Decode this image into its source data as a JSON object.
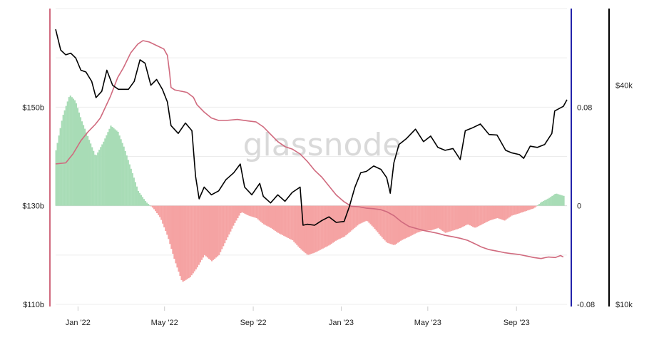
{
  "chart_data": {
    "type": "line",
    "title": "",
    "watermark": "glassnode",
    "x_range": [
      "2021-12-01",
      "2023-11-10"
    ],
    "x_ticks": [
      "Jan '22",
      "May '22",
      "Sep '22",
      "Jan '23",
      "May '23",
      "Sep '23"
    ],
    "x_tick_dates": [
      "2022-01-01",
      "2022-05-01",
      "2022-09-01",
      "2023-01-01",
      "2023-05-01",
      "2023-09-01"
    ],
    "axes": {
      "left": {
        "ticks": [
          "$110b",
          "$130b",
          "$150b"
        ],
        "values": [
          110,
          130,
          150
        ],
        "range": [
          110,
          170
        ],
        "unit": "billion USD",
        "color": "#d06a7e"
      },
      "right_inner": {
        "ticks": [
          "-0.08",
          "0",
          "0.08"
        ],
        "values": [
          -0.08,
          0,
          0.08
        ],
        "range": [
          -0.08,
          0.16
        ],
        "color": "#2222aa"
      },
      "right_outer": {
        "ticks": [
          "$10k",
          "$40k"
        ],
        "values": [
          10,
          40
        ],
        "range": [
          10,
          65
        ],
        "unit": "thousand USD",
        "log_scale": true,
        "color": "#000000"
      }
    },
    "grid": true,
    "series": [
      {
        "axis": "left",
        "style": "line",
        "color": "#d06a7e",
        "points": [
          [
            "2021-12-01",
            138.5
          ],
          [
            "2021-12-15",
            138.7
          ],
          [
            "2021-12-25",
            140.5
          ],
          [
            "2022-01-05",
            143.2
          ],
          [
            "2022-01-15",
            145.0
          ],
          [
            "2022-01-25",
            146.5
          ],
          [
            "2022-02-01",
            147.8
          ],
          [
            "2022-02-15",
            152.2
          ],
          [
            "2022-02-25",
            156.0
          ],
          [
            "2022-03-05",
            158.0
          ],
          [
            "2022-03-15",
            161.0
          ],
          [
            "2022-03-25",
            162.8
          ],
          [
            "2022-04-01",
            163.5
          ],
          [
            "2022-04-10",
            163.2
          ],
          [
            "2022-04-20",
            162.5
          ],
          [
            "2022-04-30",
            161.8
          ],
          [
            "2022-05-05",
            160.5
          ],
          [
            "2022-05-08",
            157.0
          ],
          [
            "2022-05-10",
            154.0
          ],
          [
            "2022-05-15",
            153.5
          ],
          [
            "2022-06-01",
            153.0
          ],
          [
            "2022-06-10",
            152.0
          ],
          [
            "2022-06-15",
            150.5
          ],
          [
            "2022-06-25",
            149.0
          ],
          [
            "2022-07-05",
            147.8
          ],
          [
            "2022-07-15",
            147.3
          ],
          [
            "2022-07-25",
            147.3
          ],
          [
            "2022-08-10",
            147.5
          ],
          [
            "2022-08-25",
            147.2
          ],
          [
            "2022-09-05",
            147.0
          ],
          [
            "2022-09-15",
            146.0
          ],
          [
            "2022-09-25",
            144.5
          ],
          [
            "2022-10-05",
            143.0
          ],
          [
            "2022-10-15",
            142.0
          ],
          [
            "2022-10-25",
            141.5
          ],
          [
            "2022-11-05",
            140.5
          ],
          [
            "2022-11-15",
            139.0
          ],
          [
            "2022-11-25",
            137.2
          ],
          [
            "2022-12-05",
            135.8
          ],
          [
            "2022-12-15",
            134.0
          ],
          [
            "2022-12-25",
            132.2
          ],
          [
            "2023-01-05",
            130.8
          ],
          [
            "2023-01-15",
            129.9
          ],
          [
            "2023-01-25",
            129.8
          ],
          [
            "2023-02-05",
            129.5
          ],
          [
            "2023-02-15",
            129.4
          ],
          [
            "2023-02-25",
            129.2
          ],
          [
            "2023-03-05",
            128.8
          ],
          [
            "2023-03-15",
            128.0
          ],
          [
            "2023-03-25",
            126.8
          ],
          [
            "2023-04-05",
            125.8
          ],
          [
            "2023-04-15",
            125.4
          ],
          [
            "2023-04-25",
            125.0
          ],
          [
            "2023-05-05",
            124.7
          ],
          [
            "2023-05-15",
            124.4
          ],
          [
            "2023-05-25",
            124.0
          ],
          [
            "2023-06-05",
            123.7
          ],
          [
            "2023-06-15",
            123.4
          ],
          [
            "2023-06-25",
            123.0
          ],
          [
            "2023-07-05",
            122.3
          ],
          [
            "2023-07-15",
            121.6
          ],
          [
            "2023-07-25",
            121.1
          ],
          [
            "2023-08-05",
            120.8
          ],
          [
            "2023-08-15",
            120.5
          ],
          [
            "2023-08-25",
            120.3
          ],
          [
            "2023-09-05",
            120.1
          ],
          [
            "2023-09-15",
            119.8
          ],
          [
            "2023-09-25",
            119.5
          ],
          [
            "2023-10-05",
            119.3
          ],
          [
            "2023-10-15",
            119.6
          ],
          [
            "2023-10-25",
            119.5
          ],
          [
            "2023-11-01",
            119.9
          ],
          [
            "2023-11-05",
            119.6
          ]
        ]
      },
      {
        "axis": "right_inner",
        "style": "histogram",
        "positive_color": "#a8dcb6",
        "negative_color": "#f5a3a3",
        "points": [
          [
            "2021-12-01",
            0.045
          ],
          [
            "2021-12-10",
            0.072
          ],
          [
            "2021-12-20",
            0.09
          ],
          [
            "2021-12-28",
            0.085
          ],
          [
            "2022-01-05",
            0.07
          ],
          [
            "2022-01-15",
            0.055
          ],
          [
            "2022-01-25",
            0.04
          ],
          [
            "2022-02-05",
            0.052
          ],
          [
            "2022-02-15",
            0.065
          ],
          [
            "2022-02-25",
            0.06
          ],
          [
            "2022-03-05",
            0.048
          ],
          [
            "2022-03-15",
            0.03
          ],
          [
            "2022-03-25",
            0.012
          ],
          [
            "2022-04-05",
            0.003
          ],
          [
            "2022-04-15",
            -0.002
          ],
          [
            "2022-04-25",
            -0.01
          ],
          [
            "2022-05-05",
            -0.025
          ],
          [
            "2022-05-15",
            -0.045
          ],
          [
            "2022-05-25",
            -0.062
          ],
          [
            "2022-06-05",
            -0.058
          ],
          [
            "2022-06-15",
            -0.05
          ],
          [
            "2022-06-25",
            -0.04
          ],
          [
            "2022-07-05",
            -0.045
          ],
          [
            "2022-07-15",
            -0.04
          ],
          [
            "2022-07-25",
            -0.028
          ],
          [
            "2022-08-05",
            -0.015
          ],
          [
            "2022-08-15",
            -0.005
          ],
          [
            "2022-08-25",
            -0.008
          ],
          [
            "2022-09-05",
            -0.01
          ],
          [
            "2022-09-15",
            -0.015
          ],
          [
            "2022-09-25",
            -0.018
          ],
          [
            "2022-10-05",
            -0.022
          ],
          [
            "2022-10-15",
            -0.025
          ],
          [
            "2022-10-25",
            -0.028
          ],
          [
            "2022-11-05",
            -0.035
          ],
          [
            "2022-11-15",
            -0.04
          ],
          [
            "2022-11-25",
            -0.038
          ],
          [
            "2022-12-05",
            -0.035
          ],
          [
            "2022-12-15",
            -0.032
          ],
          [
            "2022-12-25",
            -0.028
          ],
          [
            "2023-01-05",
            -0.025
          ],
          [
            "2023-01-15",
            -0.02
          ],
          [
            "2023-01-25",
            -0.015
          ],
          [
            "2023-02-05",
            -0.012
          ],
          [
            "2023-02-15",
            -0.018
          ],
          [
            "2023-02-25",
            -0.025
          ],
          [
            "2023-03-05",
            -0.03
          ],
          [
            "2023-03-15",
            -0.032
          ],
          [
            "2023-03-25",
            -0.028
          ],
          [
            "2023-04-05",
            -0.025
          ],
          [
            "2023-04-15",
            -0.022
          ],
          [
            "2023-04-25",
            -0.02
          ],
          [
            "2023-05-05",
            -0.02
          ],
          [
            "2023-05-15",
            -0.018
          ],
          [
            "2023-05-25",
            -0.022
          ],
          [
            "2023-06-05",
            -0.02
          ],
          [
            "2023-06-15",
            -0.018
          ],
          [
            "2023-06-25",
            -0.015
          ],
          [
            "2023-07-05",
            -0.018
          ],
          [
            "2023-07-15",
            -0.015
          ],
          [
            "2023-07-25",
            -0.012
          ],
          [
            "2023-08-05",
            -0.01
          ],
          [
            "2023-08-15",
            -0.012
          ],
          [
            "2023-08-25",
            -0.008
          ],
          [
            "2023-09-05",
            -0.006
          ],
          [
            "2023-09-15",
            -0.004
          ],
          [
            "2023-09-25",
            -0.002
          ],
          [
            "2023-10-05",
            0.003
          ],
          [
            "2023-10-15",
            0.006
          ],
          [
            "2023-10-25",
            0.01
          ],
          [
            "2023-11-05",
            0.008
          ]
        ]
      },
      {
        "axis": "right_outer",
        "style": "line",
        "color": "#000000",
        "points": [
          [
            "2021-12-01",
            57.0
          ],
          [
            "2021-12-08",
            50.0
          ],
          [
            "2021-12-15",
            48.5
          ],
          [
            "2021-12-22",
            49.0
          ],
          [
            "2021-12-29",
            47.5
          ],
          [
            "2022-01-05",
            44.0
          ],
          [
            "2022-01-12",
            43.5
          ],
          [
            "2022-01-20",
            41.0
          ],
          [
            "2022-01-26",
            37.0
          ],
          [
            "2022-02-03",
            38.5
          ],
          [
            "2022-02-10",
            44.0
          ],
          [
            "2022-02-18",
            40.0
          ],
          [
            "2022-02-26",
            39.0
          ],
          [
            "2022-03-05",
            39.0
          ],
          [
            "2022-03-12",
            39.0
          ],
          [
            "2022-03-20",
            41.0
          ],
          [
            "2022-03-28",
            47.0
          ],
          [
            "2022-04-04",
            46.0
          ],
          [
            "2022-04-12",
            40.0
          ],
          [
            "2022-04-20",
            41.5
          ],
          [
            "2022-04-28",
            39.0
          ],
          [
            "2022-05-05",
            36.0
          ],
          [
            "2022-05-10",
            31.0
          ],
          [
            "2022-05-20",
            29.5
          ],
          [
            "2022-05-30",
            31.5
          ],
          [
            "2022-06-08",
            30.0
          ],
          [
            "2022-06-13",
            22.5
          ],
          [
            "2022-06-18",
            19.5
          ],
          [
            "2022-06-25",
            21.0
          ],
          [
            "2022-07-05",
            20.0
          ],
          [
            "2022-07-15",
            20.5
          ],
          [
            "2022-07-25",
            22.0
          ],
          [
            "2022-08-05",
            23.0
          ],
          [
            "2022-08-14",
            24.3
          ],
          [
            "2022-08-20",
            21.0
          ],
          [
            "2022-08-30",
            20.0
          ],
          [
            "2022-09-10",
            21.5
          ],
          [
            "2022-09-15",
            19.8
          ],
          [
            "2022-09-25",
            19.0
          ],
          [
            "2022-10-05",
            20.0
          ],
          [
            "2022-10-15",
            19.2
          ],
          [
            "2022-10-25",
            20.3
          ],
          [
            "2022-11-05",
            21.0
          ],
          [
            "2022-11-09",
            16.5
          ],
          [
            "2022-11-15",
            16.6
          ],
          [
            "2022-11-25",
            16.5
          ],
          [
            "2022-12-05",
            17.0
          ],
          [
            "2022-12-15",
            17.4
          ],
          [
            "2022-12-25",
            16.8
          ],
          [
            "2023-01-05",
            16.9
          ],
          [
            "2023-01-12",
            18.5
          ],
          [
            "2023-01-20",
            21.0
          ],
          [
            "2023-01-28",
            23.0
          ],
          [
            "2023-02-05",
            23.2
          ],
          [
            "2023-02-15",
            24.0
          ],
          [
            "2023-02-25",
            23.5
          ],
          [
            "2023-03-05",
            22.3
          ],
          [
            "2023-03-10",
            20.2
          ],
          [
            "2023-03-15",
            24.5
          ],
          [
            "2023-03-22",
            27.5
          ],
          [
            "2023-04-01",
            28.5
          ],
          [
            "2023-04-14",
            30.3
          ],
          [
            "2023-04-25",
            28.0
          ],
          [
            "2023-05-05",
            29.0
          ],
          [
            "2023-05-15",
            27.0
          ],
          [
            "2023-05-25",
            26.5
          ],
          [
            "2023-06-05",
            26.8
          ],
          [
            "2023-06-15",
            25.0
          ],
          [
            "2023-06-22",
            30.0
          ],
          [
            "2023-07-01",
            30.5
          ],
          [
            "2023-07-13",
            31.3
          ],
          [
            "2023-07-25",
            29.3
          ],
          [
            "2023-08-05",
            29.2
          ],
          [
            "2023-08-17",
            26.5
          ],
          [
            "2023-08-25",
            26.1
          ],
          [
            "2023-09-05",
            25.8
          ],
          [
            "2023-09-11",
            25.2
          ],
          [
            "2023-09-20",
            27.2
          ],
          [
            "2023-09-30",
            27.0
          ],
          [
            "2023-10-10",
            27.5
          ],
          [
            "2023-10-20",
            29.5
          ],
          [
            "2023-10-24",
            34.0
          ],
          [
            "2023-10-31",
            34.6
          ],
          [
            "2023-11-05",
            35.0
          ],
          [
            "2023-11-10",
            36.5
          ]
        ]
      }
    ]
  }
}
